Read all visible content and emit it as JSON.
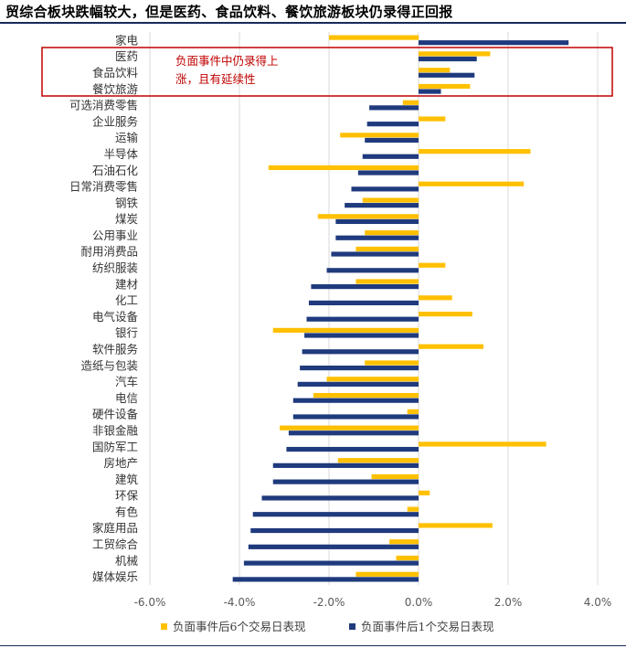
{
  "title": "贸综合板块跌幅较大，但是医药、食品饮料、餐饮旅游板块仍录得正回报",
  "annotation": [
    "负面事件中仍录得上",
    "涨，且有延续性"
  ],
  "colors": {
    "series6": "#FFC000",
    "series1": "#1F3A7D",
    "highlight": "#C00000",
    "grid": "#D9D9D9"
  },
  "chart_data": {
    "type": "bar",
    "orientation": "horizontal",
    "categories": [
      "家电",
      "医药",
      "食品饮料",
      "餐饮旅游",
      "可选消费零售",
      "企业服务",
      "运输",
      "半导体",
      "石油石化",
      "日常消费零售",
      "钢铁",
      "煤炭",
      "公用事业",
      "耐用消费品",
      "纺织服装",
      "建材",
      "化工",
      "电气设备",
      "银行",
      "软件服务",
      "造纸与包装",
      "汽车",
      "电信",
      "硬件设备",
      "非银金融",
      "国防军工",
      "房地产",
      "建筑",
      "环保",
      "有色",
      "家庭用品",
      "工贸综合",
      "机械",
      "媒体娱乐"
    ],
    "series": [
      {
        "name": "负面事件后6个交易日表现",
        "values": [
          -2.0,
          1.6,
          0.7,
          1.15,
          -0.35,
          0.6,
          -1.75,
          2.5,
          -3.35,
          2.35,
          -1.25,
          -2.25,
          -1.2,
          -1.4,
          0.6,
          -1.4,
          0.75,
          1.2,
          -3.25,
          1.45,
          -1.2,
          -2.05,
          -2.35,
          -0.25,
          -3.1,
          2.85,
          -1.8,
          -1.05,
          0.25,
          -0.25,
          1.65,
          -0.65,
          -0.5,
          -1.4
        ]
      },
      {
        "name": "负面事件后1个交易日表现",
        "values": [
          3.35,
          1.3,
          1.25,
          0.5,
          -1.1,
          -1.15,
          -1.2,
          -1.25,
          -1.35,
          -1.5,
          -1.65,
          -1.85,
          -1.85,
          -1.95,
          -2.05,
          -2.4,
          -2.45,
          -2.5,
          -2.55,
          -2.6,
          -2.65,
          -2.7,
          -2.8,
          -2.8,
          -2.9,
          -2.95,
          -3.25,
          -3.25,
          -3.5,
          -3.7,
          -3.75,
          -3.8,
          -3.9,
          -4.15
        ]
      }
    ],
    "xticks": [
      "-6.0%",
      "-4.0%",
      "-2.0%",
      "0.0%",
      "2.0%",
      "4.0%"
    ],
    "xlim": [
      -6,
      4
    ],
    "xunit": "%",
    "grid": true,
    "legend_position": "bottom",
    "highlighted_categories": [
      "医药",
      "食品饮料",
      "餐饮旅游"
    ]
  }
}
